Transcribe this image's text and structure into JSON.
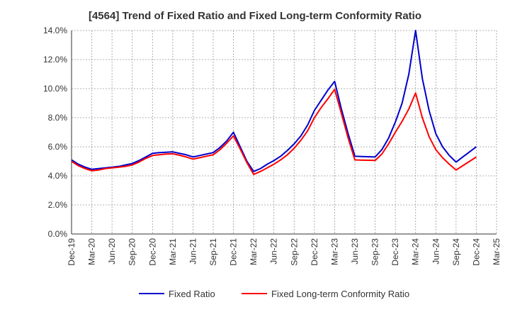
{
  "chart_data": {
    "type": "line",
    "title": "[4564]  Trend of Fixed Ratio and Fixed Long-term Conformity Ratio",
    "xlabel": "",
    "ylabel": "",
    "ylim": [
      0,
      14
    ],
    "grid": true,
    "legend_position": "bottom",
    "x_ticks": [
      "Dec-19",
      "Mar-20",
      "Jun-20",
      "Sep-20",
      "Dec-20",
      "Mar-21",
      "Jun-21",
      "Sep-21",
      "Dec-21",
      "Mar-22",
      "Jun-22",
      "Sep-22",
      "Dec-22",
      "Mar-23",
      "Jun-23",
      "Sep-23",
      "Dec-23",
      "Mar-24",
      "Jun-24",
      "Sep-24",
      "Dec-24",
      "Mar-25"
    ],
    "y_ticks": [
      0,
      2,
      4,
      6,
      8,
      10,
      12,
      14
    ],
    "y_tick_labels": [
      "0.0%",
      "2.0%",
      "4.0%",
      "6.0%",
      "8.0%",
      "10.0%",
      "12.0%",
      "14.0%"
    ],
    "x": [
      "Dec-19",
      "Jan-20",
      "Feb-20",
      "Mar-20",
      "Apr-20",
      "May-20",
      "Jun-20",
      "Jul-20",
      "Aug-20",
      "Sep-20",
      "Oct-20",
      "Nov-20",
      "Dec-20",
      "Jan-21",
      "Feb-21",
      "Mar-21",
      "Apr-21",
      "May-21",
      "Jun-21",
      "Jul-21",
      "Aug-21",
      "Sep-21",
      "Oct-21",
      "Nov-21",
      "Dec-21",
      "Jan-22",
      "Feb-22",
      "Mar-22",
      "Apr-22",
      "May-22",
      "Jun-22",
      "Jul-22",
      "Aug-22",
      "Sep-22",
      "Oct-22",
      "Nov-22",
      "Dec-22",
      "Jan-23",
      "Feb-23",
      "Mar-23",
      "Apr-23",
      "May-23",
      "Jun-23",
      "Jul-23",
      "Aug-23",
      "Sep-23",
      "Oct-23",
      "Nov-23",
      "Dec-23",
      "Jan-24",
      "Feb-24",
      "Mar-24",
      "Apr-24",
      "May-24",
      "Jun-24",
      "Jul-24",
      "Aug-24",
      "Sep-24",
      "Oct-24",
      "Nov-24",
      "Dec-24"
    ],
    "series": [
      {
        "name": "Fixed Ratio",
        "color": "#0000cc",
        "values": [
          5.1,
          4.8,
          4.6,
          4.45,
          4.5,
          4.55,
          4.6,
          4.65,
          4.75,
          4.85,
          5.05,
          5.3,
          5.55,
          5.6,
          5.62,
          5.65,
          5.55,
          5.45,
          5.3,
          5.4,
          5.5,
          5.6,
          5.95,
          6.4,
          7.0,
          6.0,
          5.0,
          4.3,
          4.5,
          4.8,
          5.05,
          5.35,
          5.75,
          6.2,
          6.75,
          7.5,
          8.5,
          9.2,
          9.9,
          10.5,
          8.6,
          6.9,
          5.35,
          5.33,
          5.32,
          5.3,
          5.8,
          6.6,
          7.7,
          9.0,
          11.0,
          14.0,
          10.7,
          8.5,
          6.9,
          6.0,
          5.4,
          4.95,
          5.3,
          5.65,
          6.0
        ]
      },
      {
        "name": "Fixed Long-term Conformity Ratio",
        "color": "#ff0000",
        "values": [
          5.0,
          4.7,
          4.5,
          4.35,
          4.4,
          4.5,
          4.55,
          4.6,
          4.65,
          4.75,
          4.95,
          5.2,
          5.4,
          5.45,
          5.5,
          5.52,
          5.42,
          5.3,
          5.15,
          5.25,
          5.35,
          5.45,
          5.8,
          6.25,
          6.75,
          5.85,
          4.9,
          4.1,
          4.3,
          4.55,
          4.8,
          5.1,
          5.45,
          5.9,
          6.45,
          7.1,
          8.0,
          8.7,
          9.3,
          9.95,
          8.3,
          6.6,
          5.1,
          5.08,
          5.07,
          5.06,
          5.5,
          6.2,
          7.0,
          7.75,
          8.6,
          9.7,
          8.0,
          6.7,
          5.8,
          5.25,
          4.8,
          4.4,
          4.7,
          5.0,
          5.3
        ]
      }
    ]
  }
}
